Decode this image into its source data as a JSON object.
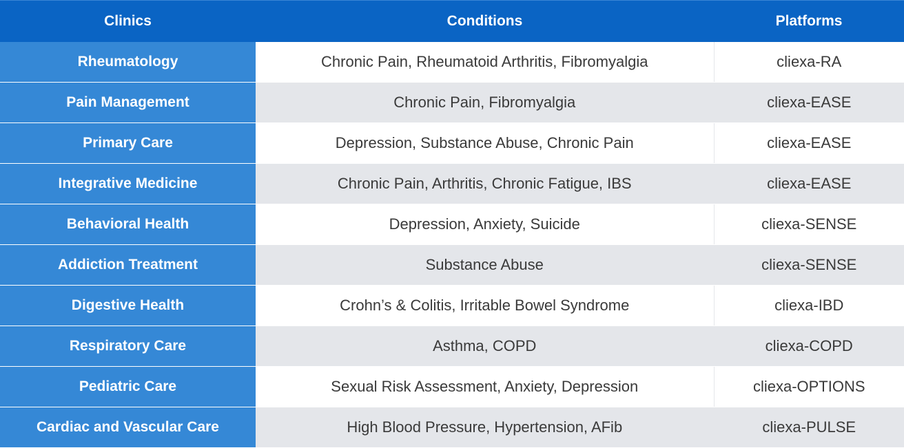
{
  "table": {
    "headers": {
      "clinics": "Clinics",
      "conditions": "Conditions",
      "platforms": "Platforms"
    },
    "rows": [
      {
        "clinic": "Rheumatology",
        "conditions": "Chronic Pain, Rheumatoid Arthritis, Fibromyalgia",
        "platform": "cliexa-RA"
      },
      {
        "clinic": "Pain Management",
        "conditions": "Chronic Pain, Fibromyalgia",
        "platform": "cliexa-EASE"
      },
      {
        "clinic": "Primary Care",
        "conditions": "Depression, Substance Abuse, Chronic Pain",
        "platform": "cliexa-EASE"
      },
      {
        "clinic": "Integrative Medicine",
        "conditions": "Chronic Pain, Arthritis, Chronic Fatigue, IBS",
        "platform": "cliexa-EASE"
      },
      {
        "clinic": "Behavioral Health",
        "conditions": "Depression, Anxiety, Suicide",
        "platform": "cliexa-SENSE"
      },
      {
        "clinic": "Addiction Treatment",
        "conditions": "Substance Abuse",
        "platform": "cliexa-SENSE"
      },
      {
        "clinic": "Digestive Health",
        "conditions": "Crohn’s & Colitis, Irritable Bowel Syndrome",
        "platform": "cliexa-IBD"
      },
      {
        "clinic": "Respiratory Care",
        "conditions": "Asthma, COPD",
        "platform": "cliexa-COPD"
      },
      {
        "clinic": "Pediatric Care",
        "conditions": "Sexual Risk Assessment, Anxiety, Depression",
        "platform": "cliexa-OPTIONS"
      },
      {
        "clinic": "Cardiac and Vascular Care",
        "conditions": "High Blood Pressure, Hypertension, AFib",
        "platform": "cliexa-PULSE"
      }
    ]
  },
  "colors": {
    "header_bg": "#0a64c4",
    "clinic_col_bg": "#3588d6",
    "stripe_bg": "#e4e6ea",
    "text": "#3a3a3a"
  }
}
